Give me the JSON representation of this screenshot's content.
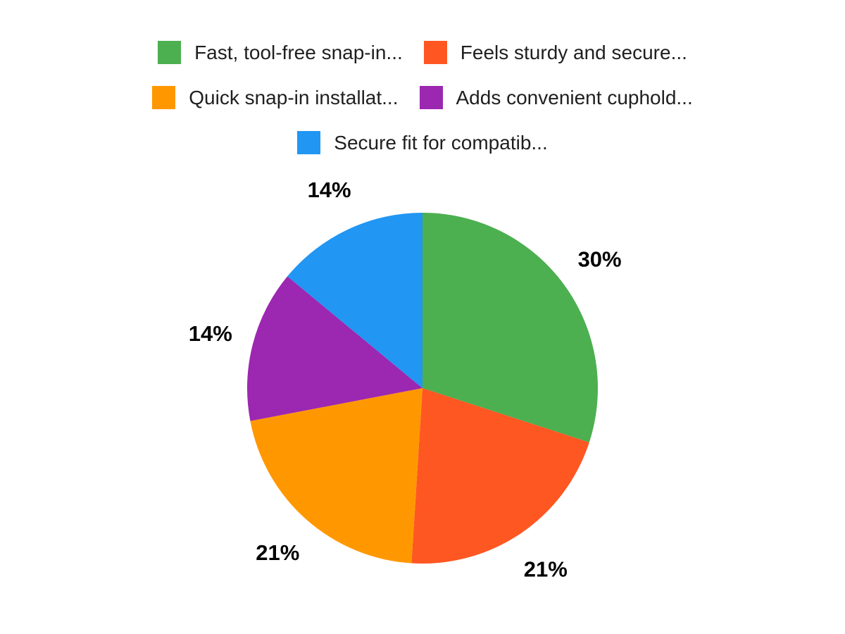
{
  "chart_data": {
    "type": "pie",
    "title": "",
    "legend_position": "top",
    "direction": "clockwise",
    "start_angle_deg": 0,
    "background_color": "#FFFFFF",
    "percent_label_color": "#000000",
    "legend_text_color": "#1F1F1F",
    "series": [
      {
        "label": "Fast, tool-free snap-in...",
        "value": 30,
        "pct": "30%",
        "color": "#4CAF50"
      },
      {
        "label": "Feels sturdy and secure...",
        "value": 21,
        "pct": "21%",
        "color": "#FF5722"
      },
      {
        "label": "Quick snap-in installat...",
        "value": 21,
        "pct": "21%",
        "color": "#FF9800"
      },
      {
        "label": "Adds convenient cuphold...",
        "value": 14,
        "pct": "14%",
        "color": "#9C27B0"
      },
      {
        "label": "Secure fit for compatib...",
        "value": 14,
        "pct": "14%",
        "color": "#2196F3"
      }
    ]
  }
}
